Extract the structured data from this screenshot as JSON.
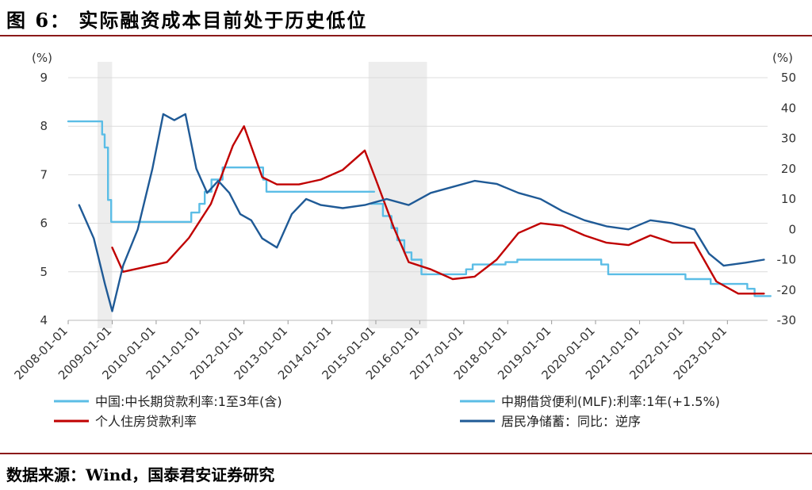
{
  "header": {
    "title": "图 6：    实际融资成本目前处于历史低位"
  },
  "footer": {
    "source": "数据来源：Wind，国泰君安证券研究"
  },
  "chart_data": {
    "type": "line",
    "left_axis": {
      "unit": "(%)",
      "ylim": [
        4,
        9
      ],
      "ticks": [
        "4",
        "5",
        "6",
        "7",
        "8",
        "9"
      ]
    },
    "right_axis": {
      "unit": "(%)",
      "ylim": [
        -30,
        50
      ],
      "ticks": [
        "-30",
        "-20",
        "-10",
        "0",
        "10",
        "20",
        "30",
        "40",
        "50"
      ]
    },
    "x_ticks": [
      "2008-01-01",
      "2009-01-01",
      "2010-01-01",
      "2011-01-01",
      "2012-01-01",
      "2013-01-01",
      "2014-01-01",
      "2015-01-01",
      "2016-01-01",
      "2017-01-01",
      "2018-01-01",
      "2019-01-01",
      "2020-01-01",
      "2021-01-01",
      "2022-01-01",
      "2023-01-01"
    ],
    "shaded_periods": [
      [
        "2008-09-01",
        "2008-12-31"
      ],
      [
        "2014-11-01",
        "2016-03-01"
      ]
    ],
    "grid": true,
    "legend_position": "bottom",
    "series": [
      {
        "name": "中国:中长期贷款利率:1至3年(含)",
        "axis": "left",
        "color": "#5bbde6",
        "points": [
          [
            "2008-01-01",
            8.1
          ],
          [
            "2008-09-16",
            8.1
          ],
          [
            "2008-10-09",
            7.83
          ],
          [
            "2008-10-30",
            7.56
          ],
          [
            "2008-11-27",
            6.48
          ],
          [
            "2008-12-23",
            6.03
          ],
          [
            "2009-12-31",
            6.03
          ],
          [
            "2010-10-20",
            6.22
          ],
          [
            "2010-12-26",
            6.4
          ],
          [
            "2011-02-09",
            6.65
          ],
          [
            "2011-04-06",
            6.9
          ],
          [
            "2011-07-07",
            7.15
          ],
          [
            "2012-06-08",
            6.9
          ],
          [
            "2012-07-06",
            6.65
          ],
          [
            "2014-11-22",
            6.65
          ]
        ],
        "step": true
      },
      {
        "name": "中期借贷便利(MLF):利率:1年(+1.5%)",
        "axis": "left",
        "color": "#5bbde6",
        "points": [
          [
            "2014-11-22",
            6.4
          ],
          [
            "2015-03-01",
            6.15
          ],
          [
            "2015-05-11",
            5.9
          ],
          [
            "2015-06-28",
            5.65
          ],
          [
            "2015-08-26",
            5.4
          ],
          [
            "2015-10-24",
            5.25
          ],
          [
            "2016-01-15",
            4.95
          ],
          [
            "2017-01-20",
            5.05
          ],
          [
            "2017-03-16",
            5.15
          ],
          [
            "2017-12-14",
            5.2
          ],
          [
            "2018-03-22",
            5.25
          ],
          [
            "2020-02-17",
            5.15
          ],
          [
            "2020-04-15",
            4.95
          ],
          [
            "2022-01-17",
            4.85
          ],
          [
            "2022-08-15",
            4.75
          ],
          [
            "2023-06-15",
            4.65
          ],
          [
            "2023-08-15",
            4.5
          ],
          [
            "2023-11-30",
            4.5
          ]
        ],
        "step": true
      },
      {
        "name": "个人住房贷款利率",
        "axis": "left",
        "color": "#c00000",
        "points": [
          [
            "2009-01-01",
            5.5
          ],
          [
            "2009-04-01",
            5.0
          ],
          [
            "2009-10-01",
            5.1
          ],
          [
            "2010-04-01",
            5.2
          ],
          [
            "2010-10-01",
            5.7
          ],
          [
            "2011-04-01",
            6.4
          ],
          [
            "2011-10-01",
            7.6
          ],
          [
            "2012-01-01",
            8.0
          ],
          [
            "2012-06-01",
            6.95
          ],
          [
            "2012-10-01",
            6.8
          ],
          [
            "2013-04-01",
            6.8
          ],
          [
            "2013-10-01",
            6.9
          ],
          [
            "2014-04-01",
            7.1
          ],
          [
            "2014-10-01",
            7.5
          ],
          [
            "2015-01-01",
            6.9
          ],
          [
            "2015-06-01",
            5.9
          ],
          [
            "2015-10-01",
            5.2
          ],
          [
            "2016-04-01",
            5.05
          ],
          [
            "2016-10-01",
            4.85
          ],
          [
            "2017-04-01",
            4.9
          ],
          [
            "2017-10-01",
            5.25
          ],
          [
            "2018-04-01",
            5.8
          ],
          [
            "2018-10-01",
            6.0
          ],
          [
            "2019-04-01",
            5.95
          ],
          [
            "2019-10-01",
            5.75
          ],
          [
            "2020-04-01",
            5.6
          ],
          [
            "2020-10-01",
            5.55
          ],
          [
            "2021-04-01",
            5.75
          ],
          [
            "2021-10-01",
            5.6
          ],
          [
            "2022-04-01",
            5.6
          ],
          [
            "2022-10-01",
            4.8
          ],
          [
            "2023-04-01",
            4.55
          ],
          [
            "2023-11-01",
            4.55
          ]
        ]
      },
      {
        "name": "居民净储蓄：同比：逆序",
        "axis": "right",
        "color": "#1f5a96",
        "points": [
          [
            "2008-04-01",
            8.0
          ],
          [
            "2008-08-01",
            -3.0
          ],
          [
            "2008-11-01",
            -18.0
          ],
          [
            "2009-01-01",
            -27.0
          ],
          [
            "2009-04-01",
            -12.0
          ],
          [
            "2009-08-01",
            0.0
          ],
          [
            "2009-12-01",
            20.0
          ],
          [
            "2010-03-01",
            38.0
          ],
          [
            "2010-06-01",
            36.0
          ],
          [
            "2010-09-01",
            38.0
          ],
          [
            "2010-12-01",
            20.0
          ],
          [
            "2011-03-01",
            12.0
          ],
          [
            "2011-06-01",
            16.0
          ],
          [
            "2011-09-01",
            12.0
          ],
          [
            "2011-12-01",
            5.0
          ],
          [
            "2012-03-01",
            3.0
          ],
          [
            "2012-06-01",
            -3.0
          ],
          [
            "2012-10-01",
            -6.0
          ],
          [
            "2013-02-01",
            5.0
          ],
          [
            "2013-06-01",
            10.0
          ],
          [
            "2013-10-01",
            8.0
          ],
          [
            "2014-04-01",
            7.0
          ],
          [
            "2014-10-01",
            8.0
          ],
          [
            "2015-04-01",
            10.0
          ],
          [
            "2015-10-01",
            8.0
          ],
          [
            "2016-04-01",
            12.0
          ],
          [
            "2016-10-01",
            14.0
          ],
          [
            "2017-04-01",
            16.0
          ],
          [
            "2017-10-01",
            15.0
          ],
          [
            "2018-04-01",
            12.0
          ],
          [
            "2018-10-01",
            10.0
          ],
          [
            "2019-04-01",
            6.0
          ],
          [
            "2019-10-01",
            3.0
          ],
          [
            "2020-04-01",
            1.0
          ],
          [
            "2020-10-01",
            0.0
          ],
          [
            "2021-04-01",
            3.0
          ],
          [
            "2021-10-01",
            2.0
          ],
          [
            "2022-04-01",
            0.0
          ],
          [
            "2022-08-01",
            -8.0
          ],
          [
            "2022-12-01",
            -12.0
          ],
          [
            "2023-06-01",
            -11.0
          ],
          [
            "2023-11-01",
            -10.0
          ]
        ]
      }
    ]
  }
}
